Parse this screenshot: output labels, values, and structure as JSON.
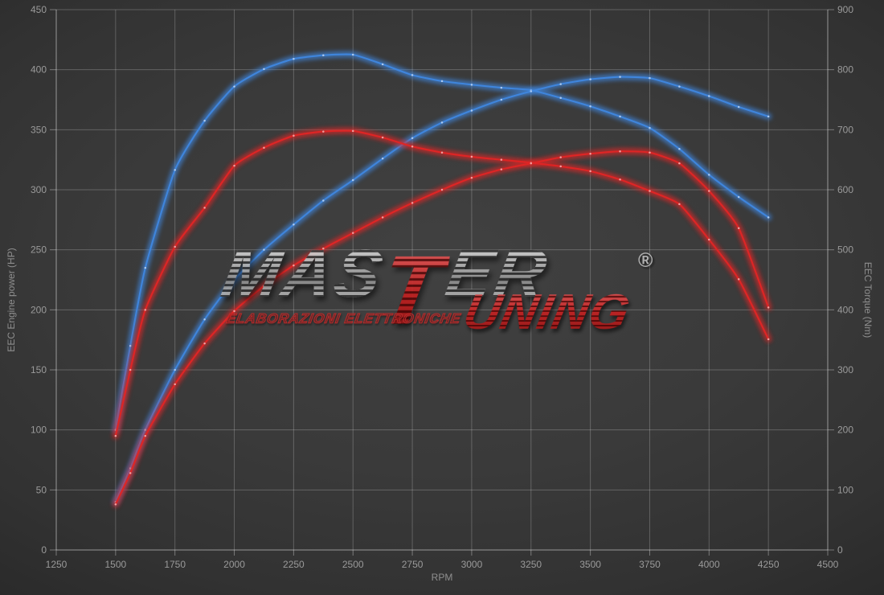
{
  "watermark": {
    "mas": "MAS",
    "t": "T",
    "er": "ER",
    "uning": "UNING",
    "subtitle": "ELABORAZIONI ELETTRONICHE",
    "registered": "®"
  },
  "chart_data": {
    "type": "line",
    "title": "",
    "xlabel": "RPM",
    "ylabel_left": "EEC Engine power (HP)",
    "ylabel_right": "EEC Torque (Nm)",
    "x_range": [
      1250,
      4500
    ],
    "x_tick_step": 250,
    "y_left_range": [
      0,
      450
    ],
    "y_left_tick_step": 50,
    "y_right_range": [
      0,
      900
    ],
    "y_right_tick_step": 100,
    "grid": true,
    "legend": "none",
    "colors": {
      "tuned": "#3f85dc",
      "original": "#de2525",
      "grid": "rgba(255,255,255,0.22)",
      "axis": "rgba(255,255,255,0.35)",
      "tick_label": "#9a9a9a",
      "axis_title": "#8f8f8f"
    },
    "rpm": [
      1500,
      1562,
      1625,
      1750,
      1875,
      2000,
      2125,
      2250,
      2375,
      2500,
      2625,
      2750,
      2875,
      3000,
      3125,
      3250,
      3375,
      3500,
      3625,
      3750,
      3875,
      4000,
      4125,
      4250
    ],
    "series": [
      {
        "name": "tuned-torque",
        "axis": "right",
        "unit": "Nm",
        "color": "#3f85dc",
        "dot_color": "#bdd6f7",
        "peak": {
          "rpm": 2500,
          "value": 825
        },
        "values": [
          200,
          340,
          470,
          633,
          715,
          772,
          801,
          818,
          824,
          825,
          809,
          791,
          781,
          775,
          770,
          766,
          753,
          739,
          722,
          703,
          668,
          625,
          588,
          554
        ]
      },
      {
        "name": "tuned-power",
        "axis": "left",
        "unit": "HP",
        "color": "#3f85dc",
        "dot_color": "#bdd6f7",
        "peak": {
          "rpm": 3625,
          "value": 394
        },
        "values": [
          40,
          68,
          100,
          150,
          192,
          225,
          250,
          271,
          291,
          308,
          326,
          343,
          356,
          366,
          375,
          382,
          388,
          392,
          394,
          393,
          386,
          378,
          369,
          361
        ]
      },
      {
        "name": "original-torque",
        "axis": "right",
        "unit": "Nm",
        "color": "#de2525",
        "dot_color": "#f7b3b3",
        "peak": {
          "rpm": 2500,
          "value": 698
        },
        "values": [
          190,
          300,
          400,
          505,
          570,
          640,
          670,
          690,
          697,
          698,
          687,
          672,
          662,
          655,
          650,
          645,
          639,
          631,
          617,
          598,
          576,
          517,
          451,
          351
        ]
      },
      {
        "name": "original-power",
        "axis": "left",
        "unit": "HP",
        "color": "#de2525",
        "dot_color": "#f7b3b3",
        "peak": {
          "rpm": 3625,
          "value": 332
        },
        "values": [
          38,
          64,
          95,
          138,
          172,
          199,
          220,
          237,
          251,
          264,
          277,
          289,
          300,
          310,
          317,
          322,
          327,
          330,
          332,
          331,
          322,
          299,
          268,
          202
        ]
      }
    ]
  }
}
